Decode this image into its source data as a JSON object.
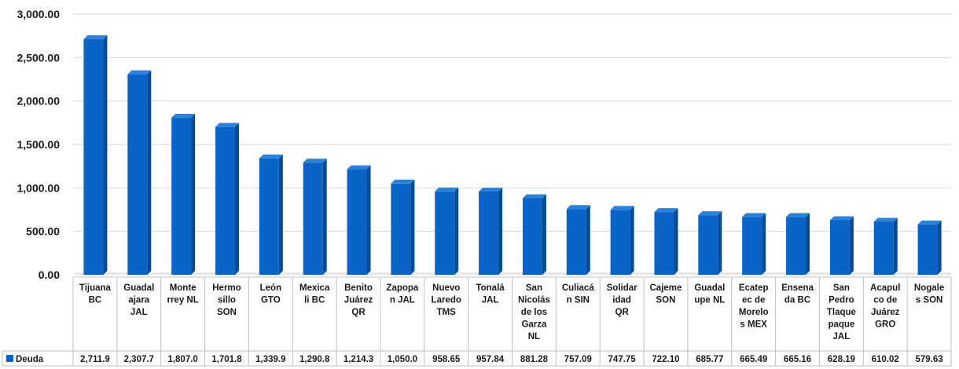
{
  "chart_data": {
    "type": "bar",
    "title": "",
    "xlabel": "",
    "ylabel": "",
    "ylim": [
      0,
      3000
    ],
    "yticks": [
      "0.00",
      "500.00",
      "1,000.00",
      "1,500.00",
      "2,000.00",
      "2,500.00",
      "3,000.00"
    ],
    "ytick_values": [
      0,
      500,
      1000,
      1500,
      2000,
      2500,
      3000
    ],
    "grid": true,
    "legend_placement": "bottom-left (data table)",
    "bar_color": "#0a64c8",
    "bar_side_color": "#074a94",
    "bar_top_color": "#2a82dc",
    "categories": [
      [
        "Tijuana",
        "BC"
      ],
      [
        "Guadal",
        "ajara",
        "JAL"
      ],
      [
        "Monte",
        "rrey NL"
      ],
      [
        "Hermo",
        "sillo",
        "SON"
      ],
      [
        "León",
        "GTO"
      ],
      [
        "Mexica",
        "li BC"
      ],
      [
        "Benito",
        "Juárez",
        "QR"
      ],
      [
        "Zapopa",
        "n JAL"
      ],
      [
        "Nuevo",
        "Laredo",
        "TMS"
      ],
      [
        "Tonalá",
        "JAL"
      ],
      [
        "San",
        "Nicolás",
        "de los",
        "Garza",
        "NL"
      ],
      [
        "Culiacá",
        "n SIN"
      ],
      [
        "Solidar",
        "idad",
        "QR"
      ],
      [
        "Cajeme",
        "SON"
      ],
      [
        "Guadal",
        "upe NL"
      ],
      [
        "Ecatep",
        "ec de",
        "Morelo",
        "s MEX"
      ],
      [
        "Ensena",
        "da BC"
      ],
      [
        "San",
        "Pedro",
        "Tlaque",
        "paque",
        "JAL"
      ],
      [
        "Acapul",
        "co de",
        "Juárez",
        "GRO"
      ],
      [
        "Nogale",
        "s SON"
      ]
    ],
    "series": [
      {
        "name": "Deuda",
        "values": [
          2711.9,
          2307.7,
          1807.0,
          1701.8,
          1339.9,
          1290.8,
          1214.3,
          1050.0,
          958.65,
          957.84,
          881.28,
          757.09,
          747.75,
          722.1,
          685.77,
          665.49,
          665.16,
          628.19,
          610.02,
          579.63
        ],
        "value_labels": [
          "2,711.9",
          "2,307.7",
          "1,807.0",
          "1,701.8",
          "1,339.9",
          "1,290.8",
          "1,214.3",
          "1,050.0",
          "958.65",
          "957.84",
          "881.28",
          "757.09",
          "747.75",
          "722.10",
          "685.77",
          "665.49",
          "665.16",
          "628.19",
          "610.02",
          "579.63"
        ]
      }
    ]
  }
}
